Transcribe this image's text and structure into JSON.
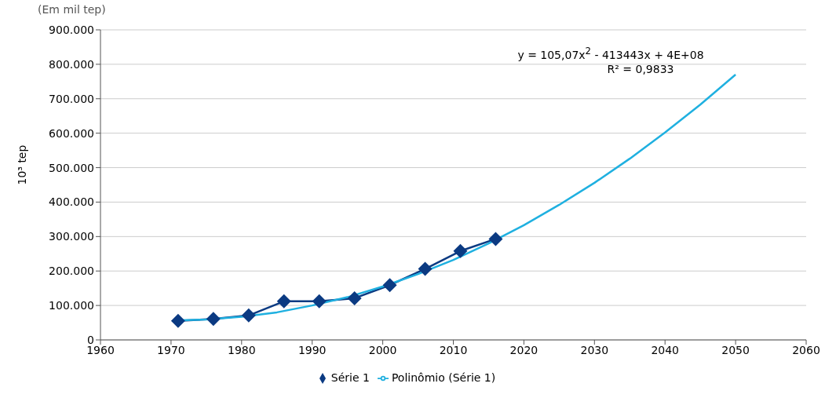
{
  "chart_data": {
    "type": "line",
    "subtitle": "(Em mil tep)",
    "ylabel": "10³ tep",
    "xlim": [
      1960,
      2060
    ],
    "xticks": [
      1960,
      1970,
      1980,
      1990,
      2000,
      2010,
      2020,
      2030,
      2040,
      2050,
      2060
    ],
    "ylim": [
      0,
      900000
    ],
    "yticks": [
      {
        "value": 0,
        "label": "0"
      },
      {
        "value": 100000,
        "label": "100.000"
      },
      {
        "value": 200000,
        "label": "200.000"
      },
      {
        "value": 300000,
        "label": "300.000"
      },
      {
        "value": 400000,
        "label": "400.000"
      },
      {
        "value": 500000,
        "label": "500.000"
      },
      {
        "value": 600000,
        "label": "600.000"
      },
      {
        "value": 700000,
        "label": "700.000"
      },
      {
        "value": 800000,
        "label": "800.000"
      },
      {
        "value": 900000,
        "label": "900.000"
      }
    ],
    "grid": "y",
    "legend": "bottom",
    "annotations": [
      "y = 105,07x$^{2}$ - 413443x + 4E+08",
      "R² = 0,9833"
    ],
    "series": [
      {
        "name": "Série 1",
        "color": "#0b3a82",
        "marker": "diamond",
        "x": [
          1971,
          1976,
          1981,
          1986,
          1991,
          1996,
          2001,
          2006,
          2011,
          2016
        ],
        "values": [
          55000,
          61000,
          71000,
          112000,
          112000,
          121000,
          159000,
          206000,
          258000,
          293000
        ]
      },
      {
        "name": "Polinômio (Série 1)",
        "color": "#1fb0e0",
        "marker": "none",
        "x": [
          1971,
          1975,
          1980,
          1985,
          1990,
          1995,
          2000,
          2005,
          2010,
          2015,
          2020,
          2025,
          2030,
          2035,
          2040,
          2045,
          2050
        ],
        "values": [
          57000,
          59000,
          67000,
          80000,
          100000,
          124000,
          155000,
          191000,
          232000,
          280000,
          333000,
          392000,
          456000,
          526000,
          602000,
          683000,
          770000
        ]
      }
    ]
  }
}
